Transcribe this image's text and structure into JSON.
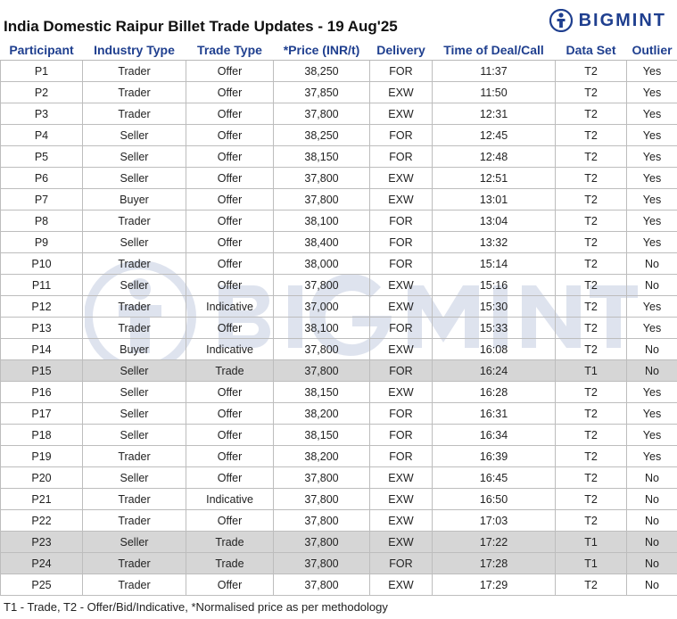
{
  "header": {
    "title": "India Domestic Raipur Billet Trade Updates - 19 Aug'25",
    "logo_text": "BIGMINT"
  },
  "colors": {
    "brand": "#1f3f8f",
    "header_text": "#1f3f8f",
    "trade_row": "#d6d6d6"
  },
  "table": {
    "columns": [
      "Participant",
      "Industry Type",
      "Trade Type",
      "*Price (INR/t)",
      "Delivery",
      "Time of Deal/Call",
      "Data Set",
      "Outlier"
    ],
    "rows": [
      [
        "P1",
        "Trader",
        "Offer",
        "38,250",
        "FOR",
        "11:37",
        "T2",
        "Yes"
      ],
      [
        "P2",
        "Trader",
        "Offer",
        "37,850",
        "EXW",
        "11:50",
        "T2",
        "Yes"
      ],
      [
        "P3",
        "Trader",
        "Offer",
        "37,800",
        "EXW",
        "12:31",
        "T2",
        "Yes"
      ],
      [
        "P4",
        "Seller",
        "Offer",
        "38,250",
        "FOR",
        "12:45",
        "T2",
        "Yes"
      ],
      [
        "P5",
        "Seller",
        "Offer",
        "38,150",
        "FOR",
        "12:48",
        "T2",
        "Yes"
      ],
      [
        "P6",
        "Seller",
        "Offer",
        "37,800",
        "EXW",
        "12:51",
        "T2",
        "Yes"
      ],
      [
        "P7",
        "Buyer",
        "Offer",
        "37,800",
        "EXW",
        "13:01",
        "T2",
        "Yes"
      ],
      [
        "P8",
        "Trader",
        "Offer",
        "38,100",
        "FOR",
        "13:04",
        "T2",
        "Yes"
      ],
      [
        "P9",
        "Seller",
        "Offer",
        "38,400",
        "FOR",
        "13:32",
        "T2",
        "Yes"
      ],
      [
        "P10",
        "Trader",
        "Offer",
        "38,000",
        "FOR",
        "15:14",
        "T2",
        "No"
      ],
      [
        "P11",
        "Seller",
        "Offer",
        "37,800",
        "EXW",
        "15:16",
        "T2",
        "No"
      ],
      [
        "P12",
        "Trader",
        "Indicative",
        "37,000",
        "EXW",
        "15:30",
        "T2",
        "Yes"
      ],
      [
        "P13",
        "Trader",
        "Offer",
        "38,100",
        "FOR",
        "15:33",
        "T2",
        "Yes"
      ],
      [
        "P14",
        "Buyer",
        "Indicative",
        "37,800",
        "EXW",
        "16:08",
        "T2",
        "No"
      ],
      [
        "P15",
        "Seller",
        "Trade",
        "37,800",
        "FOR",
        "16:24",
        "T1",
        "No"
      ],
      [
        "P16",
        "Seller",
        "Offer",
        "38,150",
        "EXW",
        "16:28",
        "T2",
        "Yes"
      ],
      [
        "P17",
        "Seller",
        "Offer",
        "38,200",
        "FOR",
        "16:31",
        "T2",
        "Yes"
      ],
      [
        "P18",
        "Seller",
        "Offer",
        "38,150",
        "FOR",
        "16:34",
        "T2",
        "Yes"
      ],
      [
        "P19",
        "Trader",
        "Offer",
        "38,200",
        "FOR",
        "16:39",
        "T2",
        "Yes"
      ],
      [
        "P20",
        "Seller",
        "Offer",
        "37,800",
        "EXW",
        "16:45",
        "T2",
        "No"
      ],
      [
        "P21",
        "Trader",
        "Indicative",
        "37,800",
        "EXW",
        "16:50",
        "T2",
        "No"
      ],
      [
        "P22",
        "Trader",
        "Offer",
        "37,800",
        "EXW",
        "17:03",
        "T2",
        "No"
      ],
      [
        "P23",
        "Seller",
        "Trade",
        "37,800",
        "EXW",
        "17:22",
        "T1",
        "No"
      ],
      [
        "P24",
        "Trader",
        "Trade",
        "37,800",
        "FOR",
        "17:28",
        "T1",
        "No"
      ],
      [
        "P25",
        "Trader",
        "Offer",
        "37,800",
        "EXW",
        "17:29",
        "T2",
        "No"
      ]
    ]
  },
  "footnote": "T1 - Trade, T2 - Offer/Bid/Indicative, *Normalised price as per methodology"
}
